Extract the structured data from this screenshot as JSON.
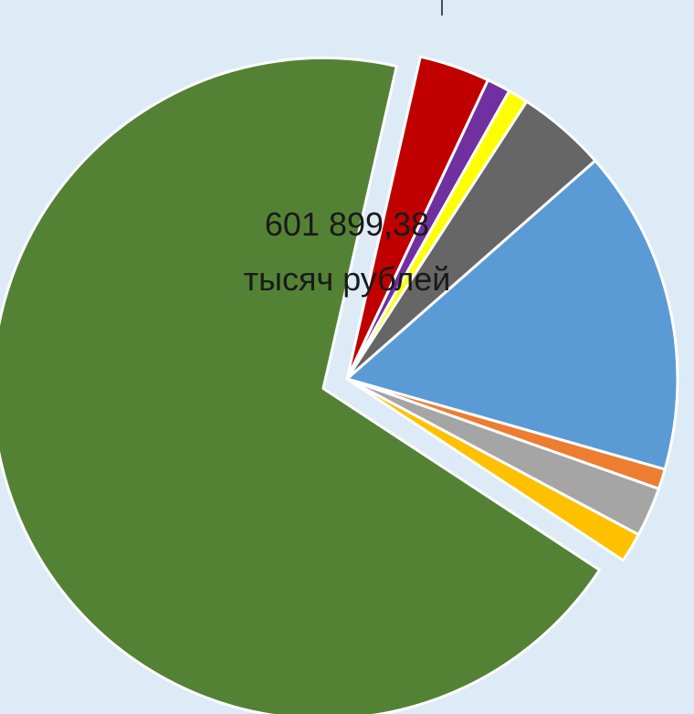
{
  "chart_data": {
    "type": "pie",
    "title": "",
    "label": {
      "line1": "601 899,38",
      "line2": "тысяч рублей"
    },
    "slices": [
      {
        "value": 601899.38,
        "color": "#548235",
        "exploded": true
      },
      {
        "value": 30000,
        "color": "#c00000",
        "exploded": false
      },
      {
        "value": 10000,
        "color": "#7030a0",
        "exploded": false
      },
      {
        "value": 8500,
        "color": "#ffff00",
        "exploded": false
      },
      {
        "value": 38000,
        "color": "#666666",
        "exploded": false
      },
      {
        "value": 138000,
        "color": "#5b9bd5",
        "exploded": false
      },
      {
        "value": 8500,
        "color": "#ed7d31",
        "exploded": false
      },
      {
        "value": 21000,
        "color": "#a5a5a5",
        "exploded": false
      },
      {
        "value": 12500,
        "color": "#ffc000",
        "exploded": false
      }
    ]
  }
}
